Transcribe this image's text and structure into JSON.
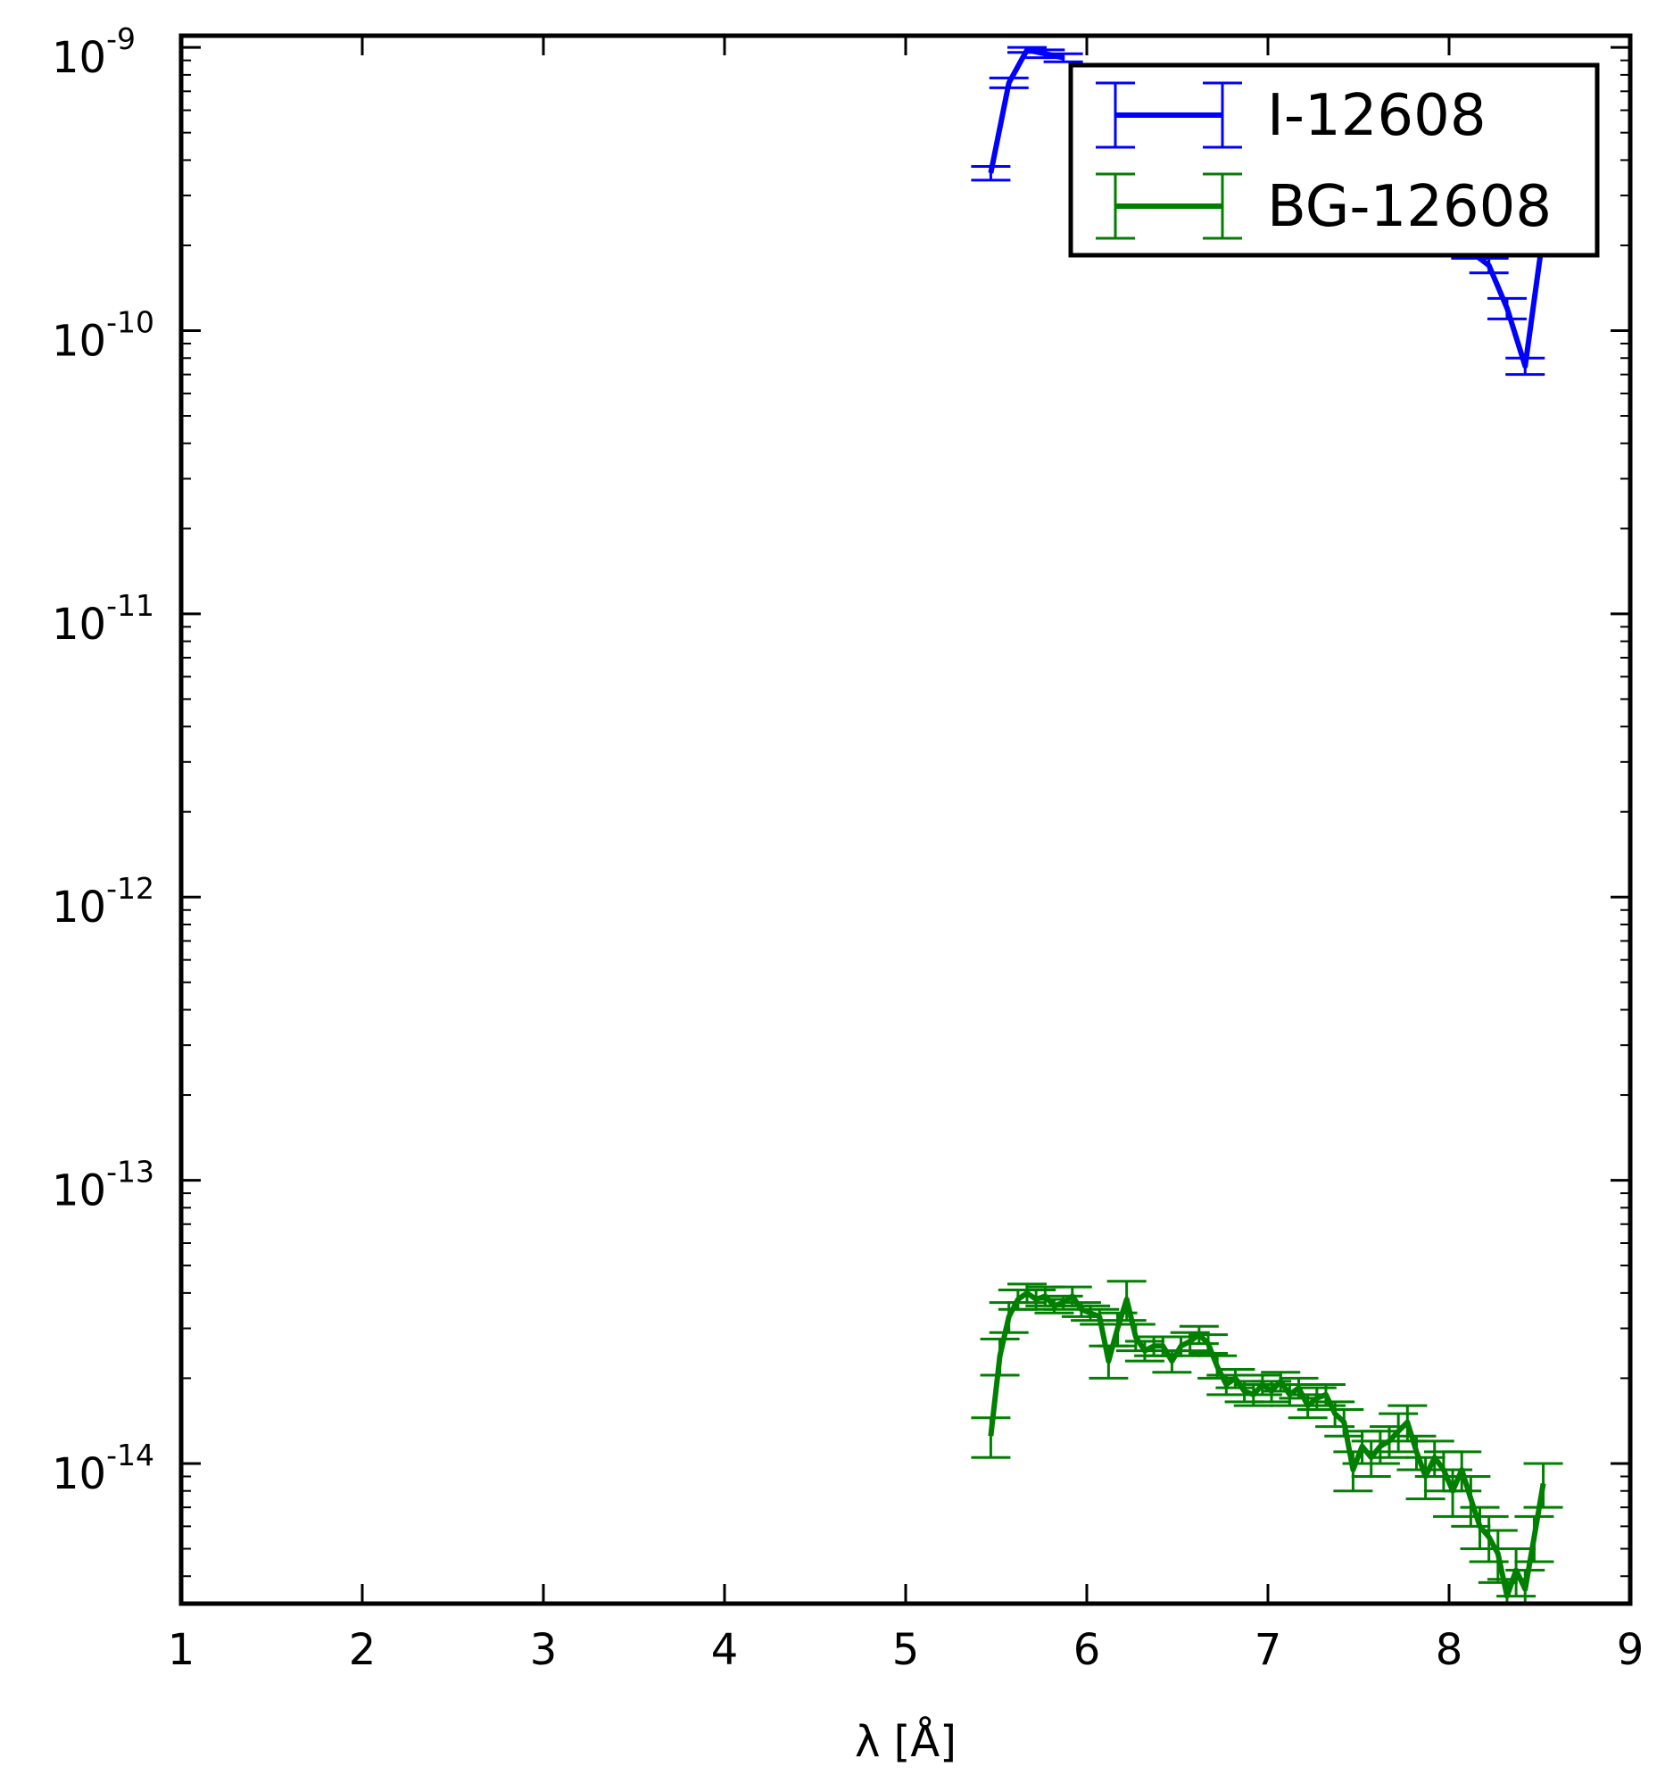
{
  "chart_data": {
    "type": "line",
    "title": "",
    "xlabel": "λ [Å]",
    "ylabel": "",
    "xlim": [
      1,
      9
    ],
    "ylim": [
      3.2e-15,
      1.1e-09
    ],
    "yscale": "log",
    "grid": false,
    "legend_position": "top-right",
    "x_ticks": [
      1,
      2,
      3,
      4,
      5,
      6,
      7,
      8,
      9
    ],
    "x_tick_labels": [
      "1",
      "2",
      "3",
      "4",
      "5",
      "6",
      "7",
      "8",
      "9"
    ],
    "y_ticks": [
      {
        "value": 1e-09,
        "base": "10",
        "exp": "-9"
      },
      {
        "value": 1e-10,
        "base": "10",
        "exp": "-10"
      },
      {
        "value": 1e-11,
        "base": "10",
        "exp": "-11"
      },
      {
        "value": 1e-12,
        "base": "10",
        "exp": "-12"
      },
      {
        "value": 1e-13,
        "base": "10",
        "exp": "-13"
      },
      {
        "value": 1e-14,
        "base": "10",
        "exp": "-14"
      }
    ],
    "series": [
      {
        "name": "I-12608",
        "color": "#0000ff",
        "x": [
          5.47,
          5.57,
          5.67,
          5.77,
          5.87,
          8.12,
          8.22,
          8.32,
          8.42,
          8.52
        ],
        "y": [
          3.6e-10,
          7.5e-10,
          9.8e-10,
          9.5e-10,
          9.2e-10,
          1.9e-10,
          1.7e-10,
          1.2e-10,
          7.5e-11,
          2.2e-10
        ],
        "err_low": [
          2e-11,
          3e-11,
          2e-11,
          3e-11,
          3e-11,
          1e-11,
          1e-11,
          1e-11,
          5e-12,
          1e-11
        ],
        "err_high": [
          2e-11,
          3e-11,
          2e-11,
          3e-11,
          3e-11,
          1e-11,
          1e-11,
          1e-11,
          5e-12,
          1e-11
        ]
      },
      {
        "name": "BG-12608",
        "color": "#007f00",
        "x": [
          5.47,
          5.52,
          5.57,
          5.62,
          5.67,
          5.72,
          5.77,
          5.82,
          5.87,
          5.92,
          5.97,
          6.02,
          6.07,
          6.12,
          6.17,
          6.22,
          6.27,
          6.32,
          6.37,
          6.42,
          6.47,
          6.52,
          6.57,
          6.62,
          6.67,
          6.72,
          6.77,
          6.82,
          6.87,
          6.92,
          6.97,
          7.02,
          7.07,
          7.12,
          7.17,
          7.22,
          7.27,
          7.32,
          7.37,
          7.42,
          7.47,
          7.52,
          7.57,
          7.62,
          7.67,
          7.72,
          7.77,
          7.82,
          7.87,
          7.92,
          7.97,
          8.02,
          8.07,
          8.12,
          8.17,
          8.22,
          8.27,
          8.32,
          8.37,
          8.42,
          8.47,
          8.52
        ],
        "y": [
          1.25e-14,
          2.4e-14,
          3.3e-14,
          3.8e-14,
          4e-14,
          3.8e-14,
          3.9e-14,
          3.6e-14,
          3.7e-14,
          3.9e-14,
          3.5e-14,
          3.4e-14,
          3.3e-14,
          2.3e-14,
          3e-14,
          3.8e-14,
          2.8e-14,
          2.5e-14,
          2.6e-14,
          2.6e-14,
          2.3e-14,
          2.6e-14,
          2.7e-14,
          2.85e-14,
          2.65e-14,
          2.2e-14,
          1.9e-14,
          2e-14,
          1.8e-14,
          1.75e-14,
          1.9e-14,
          1.8e-14,
          1.95e-14,
          1.75e-14,
          1.85e-14,
          1.6e-14,
          1.7e-14,
          1.75e-14,
          1.5e-14,
          1.4e-14,
          9.5e-15,
          1.15e-14,
          1.05e-14,
          1.15e-14,
          1.2e-14,
          1.3e-14,
          1.4e-14,
          1.1e-14,
          9e-15,
          1.05e-14,
          9.5e-15,
          8e-15,
          9.5e-15,
          7.5e-15,
          6e-15,
          5.5e-15,
          4.8e-15,
          3.4e-15,
          4.2e-15,
          3.6e-15,
          5.5e-15,
          8.5e-15
        ],
        "err_low": [
          2e-15,
          3.5e-15,
          4e-15,
          3e-15,
          3e-15,
          3e-15,
          3e-15,
          2e-15,
          2e-15,
          3e-15,
          2e-15,
          2e-15,
          2e-15,
          3e-15,
          4e-15,
          6e-15,
          3e-15,
          2e-15,
          2e-15,
          2e-15,
          2e-15,
          2e-15,
          2e-15,
          2e-15,
          2e-15,
          2e-15,
          1.5e-15,
          1.5e-15,
          1.5e-15,
          1.5e-15,
          1.5e-15,
          1.5e-15,
          1.5e-15,
          1.5e-15,
          1.5e-15,
          1.5e-15,
          1.5e-15,
          1.5e-15,
          1.5e-15,
          1.5e-15,
          1.5e-15,
          1.5e-15,
          1.5e-15,
          1.5e-15,
          1.5e-15,
          2e-15,
          2e-15,
          1.5e-15,
          1.5e-15,
          1.5e-15,
          1.5e-15,
          1.5e-15,
          1.5e-15,
          1.5e-15,
          1e-15,
          1e-15,
          1e-15,
          5e-16,
          8e-16,
          6e-16,
          1e-15,
          1.5e-15
        ],
        "err_high": [
          2e-15,
          3.5e-15,
          4e-15,
          3e-15,
          3e-15,
          3e-15,
          3e-15,
          2e-15,
          2e-15,
          3e-15,
          2e-15,
          2e-15,
          2e-15,
          3e-15,
          4e-15,
          6e-15,
          3e-15,
          2e-15,
          2e-15,
          2e-15,
          2e-15,
          2e-15,
          2e-15,
          2e-15,
          2e-15,
          2e-15,
          1.5e-15,
          1.5e-15,
          1.5e-15,
          1.5e-15,
          1.5e-15,
          1.5e-15,
          1.5e-15,
          1.5e-15,
          1.5e-15,
          1.5e-15,
          1.5e-15,
          1.5e-15,
          1.5e-15,
          1.5e-15,
          1.5e-15,
          1.5e-15,
          1.5e-15,
          1.5e-15,
          1.5e-15,
          2e-15,
          2e-15,
          1.5e-15,
          1.5e-15,
          1.5e-15,
          1.5e-15,
          1.5e-15,
          1.5e-15,
          1.5e-15,
          1e-15,
          1e-15,
          1e-15,
          5e-16,
          8e-16,
          6e-16,
          1e-15,
          1.5e-15
        ]
      }
    ]
  }
}
